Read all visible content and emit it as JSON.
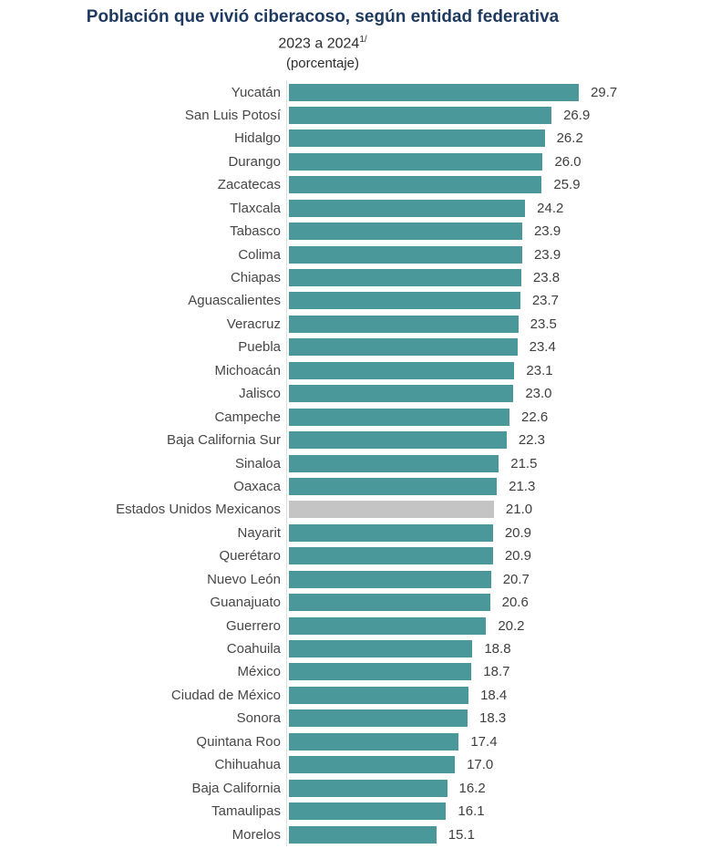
{
  "title": "Población que vivió ciberacoso, según entidad federativa",
  "subtitle": "2023 a 2024",
  "subtitle_superscript": "1/",
  "unit_label": "(porcentaje)",
  "colors": {
    "bar": "#4a9899",
    "national_bar": "#c4c4c4",
    "title": "#1f3a5f",
    "label": "#474747",
    "axis_line": "#d9dfdf"
  },
  "chart_data": {
    "type": "bar",
    "orientation": "horizontal",
    "title": "Población que vivió ciberacoso, según entidad federativa",
    "subtitle": "2023 a 2024 1/",
    "unit": "(porcentaje)",
    "xlabel": "",
    "ylabel": "",
    "xlim": [
      0,
      31
    ],
    "grid": false,
    "legend": false,
    "value_labels": true,
    "highlight_category": "Estados Unidos Mexicanos",
    "categories": [
      "Yucatán",
      "San Luis Potosí",
      "Hidalgo",
      "Durango",
      "Zacatecas",
      "Tlaxcala",
      "Tabasco",
      "Colima",
      "Chiapas",
      "Aguascalientes",
      "Veracruz",
      "Puebla",
      "Michoacán",
      "Jalisco",
      "Campeche",
      "Baja California Sur",
      "Sinaloa",
      "Oaxaca",
      "Estados Unidos Mexicanos",
      "Nayarit",
      "Querétaro",
      "Nuevo León",
      "Guanajuato",
      "Guerrero",
      "Coahuila",
      "México",
      "Ciudad de México",
      "Sonora",
      "Quintana Roo",
      "Chihuahua",
      "Baja California",
      "Tamaulipas",
      "Morelos"
    ],
    "values": [
      29.7,
      26.9,
      26.2,
      26.0,
      25.9,
      24.2,
      23.9,
      23.9,
      23.8,
      23.7,
      23.5,
      23.4,
      23.1,
      23.0,
      22.6,
      22.3,
      21.5,
      21.3,
      21.0,
      20.9,
      20.9,
      20.7,
      20.6,
      20.2,
      18.8,
      18.7,
      18.4,
      18.3,
      17.4,
      17.0,
      16.2,
      16.1,
      15.1
    ]
  }
}
